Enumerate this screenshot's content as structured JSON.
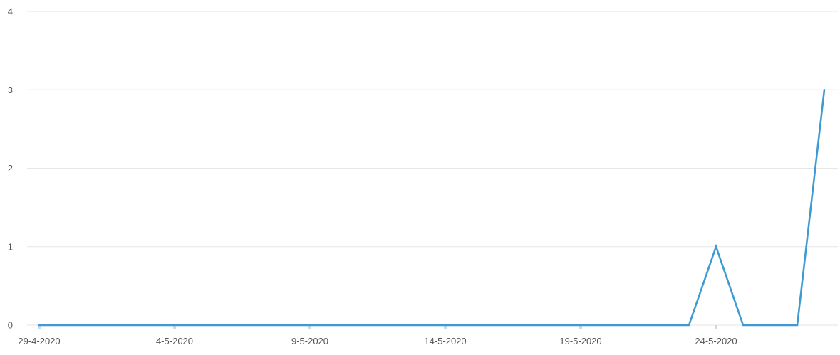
{
  "colors": {
    "line": "#3d9bd1",
    "grid": "#e6e6e6",
    "axis_tick": "#c9dcee",
    "label": "#555555"
  },
  "chart_data": {
    "type": "line",
    "title": "",
    "xlabel": "",
    "ylabel": "",
    "ylim": [
      0,
      4
    ],
    "yticks": [
      "0",
      "1",
      "2",
      "3",
      "4"
    ],
    "x_tick_labels": [
      "29-4-2020",
      "4-5-2020",
      "9-5-2020",
      "14-5-2020",
      "19-5-2020",
      "24-5-2020"
    ],
    "grid": true,
    "legend": "none",
    "series": [
      {
        "x": [
          "29-4-2020",
          "30-4-2020",
          "1-5-2020",
          "2-5-2020",
          "3-5-2020",
          "4-5-2020",
          "5-5-2020",
          "6-5-2020",
          "7-5-2020",
          "8-5-2020",
          "9-5-2020",
          "10-5-2020",
          "11-5-2020",
          "12-5-2020",
          "13-5-2020",
          "14-5-2020",
          "15-5-2020",
          "16-5-2020",
          "17-5-2020",
          "18-5-2020",
          "19-5-2020",
          "20-5-2020",
          "21-5-2020",
          "22-5-2020",
          "23-5-2020",
          "24-5-2020",
          "25-5-2020",
          "26-5-2020",
          "27-5-2020",
          "28-5-2020"
        ],
        "values": [
          0,
          0,
          0,
          0,
          0,
          0,
          0,
          0,
          0,
          0,
          0,
          0,
          0,
          0,
          0,
          0,
          0,
          0,
          0,
          0,
          0,
          0,
          0,
          0,
          0,
          1,
          0,
          0,
          0,
          3
        ]
      }
    ]
  }
}
